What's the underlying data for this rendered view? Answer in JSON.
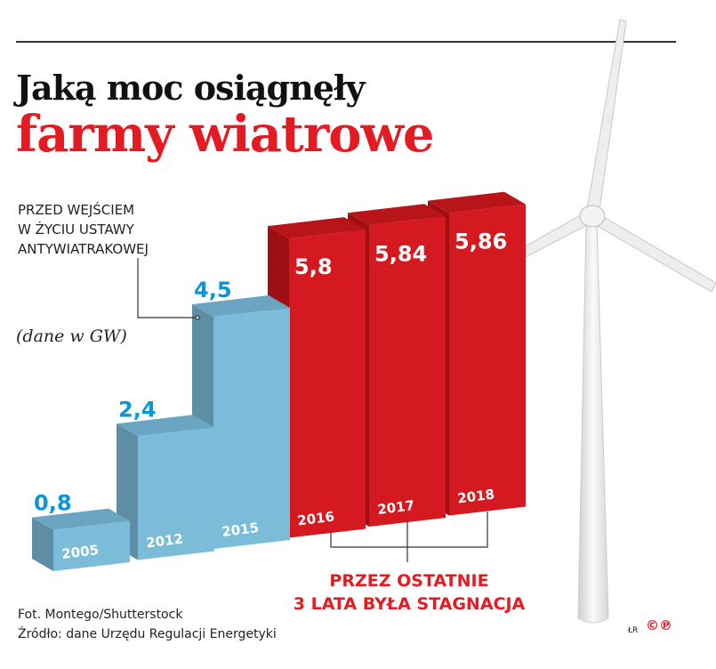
{
  "header": {
    "title_line1": "Jaką moc osiągnęły",
    "title_line2": "farmy wiatrowe"
  },
  "annotation": {
    "law_note": [
      "PRZED WEJŚCIEM",
      "W ŻYCIU USTAWY",
      "ANTYWIATRAKOWEJ"
    ],
    "stagnation": [
      "PRZEZ OSTATNIE",
      "3 LATA BYŁA STAGNACJA"
    ]
  },
  "chart_data": {
    "type": "bar",
    "title": "Jaką moc osiągnęły farmy wiatrowe",
    "ylabel": "(dane w GW)",
    "categories": [
      "2005",
      "2012",
      "2015",
      "2016",
      "2017",
      "2018"
    ],
    "values": [
      0.8,
      2.4,
      4.5,
      5.8,
      5.84,
      5.86
    ],
    "value_labels": [
      "0,8",
      "2,4",
      "4,5",
      "5,8",
      "5,84",
      "5,86"
    ],
    "colors": {
      "before": "#7bbcd9",
      "after": "#d41920",
      "label_blue": "#0a96d8"
    }
  },
  "footer": {
    "photo": "Fot. Montego/Shutterstock",
    "source": "Źródło: dane Urzędu Regulacji Energetyki",
    "initials": "ŁR",
    "logo": "©℗"
  }
}
